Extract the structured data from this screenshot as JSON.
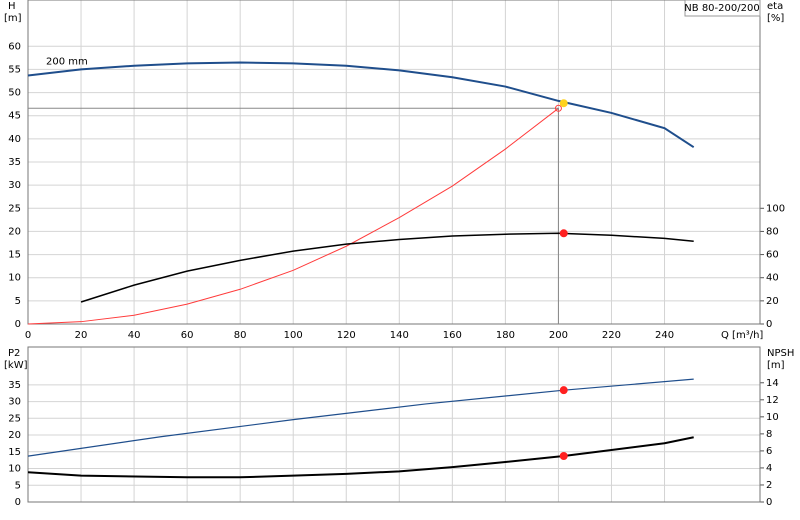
{
  "chart_data": [
    {
      "type": "line",
      "title": "NB 80-200/200",
      "ylabel": "H",
      "ylabel_unit": "[m]",
      "y2label": "eta",
      "y2label_unit": "[%]",
      "xlabel": "Q [m³/h]",
      "xlim": [
        0,
        276
      ],
      "xticks": [
        0,
        20,
        40,
        60,
        80,
        100,
        120,
        140,
        160,
        180,
        200,
        220,
        240
      ],
      "ylim": [
        0,
        70
      ],
      "yticks": [
        0,
        5,
        10,
        15,
        20,
        25,
        30,
        35,
        40,
        45,
        50,
        55,
        60
      ],
      "y2lim": [
        0,
        280
      ],
      "y2ticks": [
        0,
        20,
        40,
        60,
        80,
        100
      ],
      "grid": true,
      "series": [
        {
          "name": "200 mm",
          "color": "#1f4e8c",
          "width": 2,
          "x": [
            0,
            20,
            40,
            60,
            80,
            100,
            120,
            140,
            160,
            180,
            200,
            220,
            240,
            251
          ],
          "values": [
            53.7,
            55,
            55.8,
            56.3,
            56.5,
            56.3,
            55.8,
            54.8,
            53.3,
            51.3,
            48.2,
            45.6,
            42.3,
            38.2
          ]
        },
        {
          "color": "#ff3b3b",
          "width": 1,
          "x": [
            0,
            20,
            40,
            60,
            80,
            100,
            120,
            140,
            160,
            180,
            200
          ],
          "values": [
            0,
            0.5,
            1.9,
            4.3,
            7.5,
            11.6,
            16.8,
            23,
            29.8,
            37.8,
            46.6
          ]
        },
        {
          "color": "#888888",
          "width": 1,
          "x": [
            0,
            200,
            200
          ],
          "values": [
            46.6,
            46.6,
            0
          ]
        },
        {
          "color": "#000000",
          "width": 1.5,
          "axis": "y2",
          "x": [
            20,
            40,
            60,
            80,
            100,
            120,
            140,
            160,
            180,
            200,
            220,
            240,
            251
          ],
          "values": [
            19,
            33.6,
            45.7,
            55,
            63,
            69,
            73,
            76,
            77.6,
            78.4,
            76.7,
            74,
            71.5
          ]
        }
      ],
      "points": [
        {
          "x": 200,
          "value": 46.6,
          "color": "#ff3b3b",
          "hollow": true
        },
        {
          "x": 202,
          "value": 47.7,
          "color": "#ffd21f"
        },
        {
          "x": 202,
          "value": 78.4,
          "axis": "y2",
          "color": "#ff2020"
        }
      ]
    },
    {
      "type": "line",
      "ylabel": "P2",
      "ylabel_unit": "[kW]",
      "y2label": "NPSH",
      "y2label_unit": "[m]",
      "xlim": [
        0,
        276
      ],
      "xticks": [
        0,
        20,
        40,
        60,
        80,
        100,
        120,
        140,
        160,
        180,
        200,
        220,
        240
      ],
      "ylim": [
        0,
        46.3
      ],
      "yticks": [
        0,
        5,
        10,
        15,
        20,
        25,
        30,
        35
      ],
      "y2lim": [
        0,
        18.2
      ],
      "y2ticks": [
        0,
        2,
        4,
        6,
        8,
        10,
        12,
        14
      ],
      "grid": true,
      "series": [
        {
          "color": "#1f4e8c",
          "width": 1.2,
          "x": [
            0,
            50,
            100,
            150,
            202,
            251
          ],
          "values": [
            13.7,
            19.5,
            24.6,
            29.3,
            33.4,
            36.7
          ]
        },
        {
          "color": "#000000",
          "width": 2,
          "axis": "y2",
          "x": [
            0,
            20,
            60,
            80,
            100,
            120,
            140,
            160,
            180,
            202,
            220,
            240,
            251
          ],
          "values": [
            3.5,
            3.1,
            2.9,
            2.9,
            3.1,
            3.3,
            3.6,
            4.1,
            4.7,
            5.4,
            6.1,
            6.9,
            7.6
          ]
        }
      ],
      "points": [
        {
          "x": 202,
          "value": 33.4,
          "color": "#ff2020"
        },
        {
          "x": 202,
          "value": 5.4,
          "axis": "y2",
          "color": "#ff2020"
        }
      ]
    }
  ]
}
